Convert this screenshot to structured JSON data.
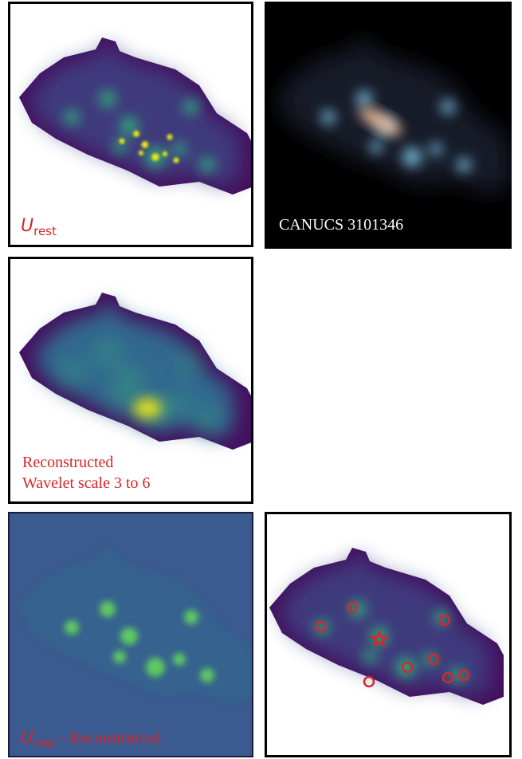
{
  "panels": [
    {
      "label": {
        "main": "U",
        "subscript": "rest"
      }
    },
    {
      "label": "CANUCS 3101346"
    },
    {
      "label": {
        "line1": "Reconstructed",
        "line2": "Wavelet scale 3 to 6"
      }
    },
    {
      "label": {
        "main": "U",
        "subscript": "rest",
        "suffix": " - Reconstructed"
      }
    }
  ]
}
